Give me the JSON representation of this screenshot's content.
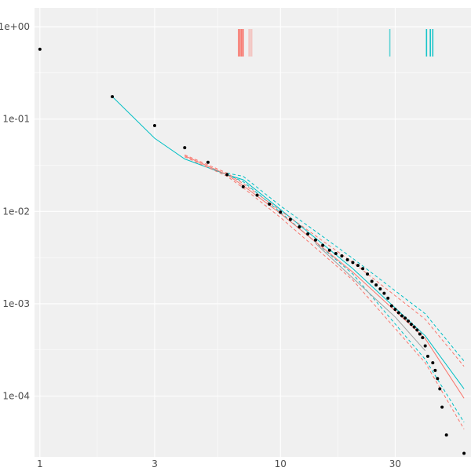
{
  "chart_data": {
    "type": "scatter",
    "title": "",
    "xlabel": "",
    "ylabel": "",
    "x_scale": "log",
    "y_scale": "log",
    "xlim": [
      0.95,
      62
    ],
    "ylim": [
      2.2e-05,
      1.6
    ],
    "x_ticks": [
      {
        "value": 1,
        "label": "1"
      },
      {
        "value": 3,
        "label": "3"
      },
      {
        "value": 10,
        "label": "10"
      },
      {
        "value": 30,
        "label": "30"
      }
    ],
    "y_ticks": [
      {
        "value": 1,
        "label": "1e+00"
      },
      {
        "value": 0.1,
        "label": "1e-01"
      },
      {
        "value": 0.01,
        "label": "1e-02"
      },
      {
        "value": 0.001,
        "label": "1e-03"
      },
      {
        "value": 0.0001,
        "label": "1e-04"
      }
    ],
    "grid": true,
    "legend": "none",
    "colors": {
      "panel": "#f0f0f0",
      "grid": "#ffffff",
      "points": "#000000",
      "series_a": "#f8766d",
      "series_b": "#00bfc4"
    },
    "points": [
      {
        "x": 1.0,
        "y": 0.57
      },
      {
        "x": 2.0,
        "y": 0.175
      },
      {
        "x": 3.0,
        "y": 0.085
      },
      {
        "x": 4.0,
        "y": 0.049
      },
      {
        "x": 5.0,
        "y": 0.034
      },
      {
        "x": 6.0,
        "y": 0.025
      },
      {
        "x": 7.0,
        "y": 0.0185
      },
      {
        "x": 8.0,
        "y": 0.015
      },
      {
        "x": 9.0,
        "y": 0.012
      },
      {
        "x": 10.0,
        "y": 0.0098
      },
      {
        "x": 11.0,
        "y": 0.0082
      },
      {
        "x": 12.0,
        "y": 0.0068
      },
      {
        "x": 13.0,
        "y": 0.0057
      },
      {
        "x": 14.0,
        "y": 0.0049
      },
      {
        "x": 15.0,
        "y": 0.0043
      },
      {
        "x": 16.0,
        "y": 0.0038
      },
      {
        "x": 17.0,
        "y": 0.0035
      },
      {
        "x": 18.0,
        "y": 0.0033
      },
      {
        "x": 19.0,
        "y": 0.003
      },
      {
        "x": 20.0,
        "y": 0.0028
      },
      {
        "x": 21.0,
        "y": 0.0026
      },
      {
        "x": 22.0,
        "y": 0.0024
      },
      {
        "x": 23.0,
        "y": 0.0021
      },
      {
        "x": 24.0,
        "y": 0.00175
      },
      {
        "x": 25.0,
        "y": 0.0016
      },
      {
        "x": 26.0,
        "y": 0.00145
      },
      {
        "x": 27.0,
        "y": 0.0013
      },
      {
        "x": 28.0,
        "y": 0.00115
      },
      {
        "x": 29.0,
        "y": 0.00095
      },
      {
        "x": 30.0,
        "y": 0.00087
      },
      {
        "x": 31.0,
        "y": 0.0008
      },
      {
        "x": 32.0,
        "y": 0.00074
      },
      {
        "x": 33.0,
        "y": 0.0007
      },
      {
        "x": 34.0,
        "y": 0.00065
      },
      {
        "x": 35.0,
        "y": 0.0006
      },
      {
        "x": 36.0,
        "y": 0.00056
      },
      {
        "x": 37.0,
        "y": 0.00052
      },
      {
        "x": 38.0,
        "y": 0.00047
      },
      {
        "x": 39.0,
        "y": 0.00043
      },
      {
        "x": 40.0,
        "y": 0.00035
      },
      {
        "x": 41.0,
        "y": 0.00027
      },
      {
        "x": 43.0,
        "y": 0.00023
      },
      {
        "x": 44.0,
        "y": 0.00019
      },
      {
        "x": 45.0,
        "y": 0.000155
      },
      {
        "x": 46.0,
        "y": 0.00012
      },
      {
        "x": 47.0,
        "y": 7.6e-05
      },
      {
        "x": 49.0,
        "y": 3.8e-05
      },
      {
        "x": 58.0,
        "y": 2.4e-05
      }
    ],
    "series": [
      {
        "color": "#00bfc4",
        "dash": "solid",
        "x": [
          2,
          3,
          4,
          6,
          7,
          10,
          20,
          40,
          58
        ],
        "y": [
          0.175,
          0.062,
          0.037,
          0.025,
          0.022,
          0.0105,
          0.0024,
          0.00045,
          0.00012
        ]
      },
      {
        "color": "#00bfc4",
        "dash": "dashed",
        "x": [
          6,
          7,
          10,
          20,
          40,
          58
        ],
        "y": [
          0.026,
          0.024,
          0.0115,
          0.0031,
          0.00078,
          0.00024
        ]
      },
      {
        "color": "#00bfc4",
        "dash": "dashed",
        "x": [
          6,
          7,
          10,
          20,
          40,
          58
        ],
        "y": [
          0.025,
          0.021,
          0.0098,
          0.0021,
          0.00025,
          5.2e-05
        ]
      },
      {
        "color": "#f8766d",
        "dash": "solid",
        "x": [
          4,
          6,
          7,
          10,
          20,
          40,
          58
        ],
        "y": [
          0.04,
          0.025,
          0.019,
          0.0095,
          0.0022,
          0.00042,
          9.5e-05
        ]
      },
      {
        "color": "#f8766d",
        "dash": "dashed",
        "x": [
          4,
          6,
          7,
          10,
          20,
          40,
          58
        ],
        "y": [
          0.041,
          0.026,
          0.02,
          0.0102,
          0.0028,
          0.00068,
          0.00021
        ]
      },
      {
        "color": "#f8766d",
        "dash": "dashed",
        "x": [
          4,
          6,
          7,
          10,
          20,
          40,
          58
        ],
        "y": [
          0.039,
          0.024,
          0.018,
          0.0086,
          0.0018,
          0.00023,
          4.4e-05
        ]
      },
      {
        "color": "#a0a0a0",
        "dash": "solid",
        "x": [
          14,
          20,
          30,
          40
        ],
        "y": [
          0.0045,
          0.0019,
          0.00072,
          0.00031
        ]
      }
    ],
    "rug": [
      {
        "x": 6.7,
        "color": "#f8766d",
        "opacity": 1.0
      },
      {
        "x": 6.8,
        "color": "#f8766d",
        "opacity": 1.0
      },
      {
        "x": 6.9,
        "color": "#f8766d",
        "opacity": 1.0
      },
      {
        "x": 7.0,
        "color": "#f8766d",
        "opacity": 1.0
      },
      {
        "x": 7.4,
        "color": "#f8766d",
        "opacity": 0.35
      },
      {
        "x": 7.5,
        "color": "#f8766d",
        "opacity": 0.35
      },
      {
        "x": 7.6,
        "color": "#f8766d",
        "opacity": 0.35
      },
      {
        "x": 28.5,
        "color": "#00bfc4",
        "opacity": 0.6
      },
      {
        "x": 40.5,
        "color": "#00bfc4",
        "opacity": 0.9
      },
      {
        "x": 42.0,
        "color": "#00bfc4",
        "opacity": 0.9
      },
      {
        "x": 43.0,
        "color": "#00bfc4",
        "opacity": 0.9
      }
    ]
  }
}
